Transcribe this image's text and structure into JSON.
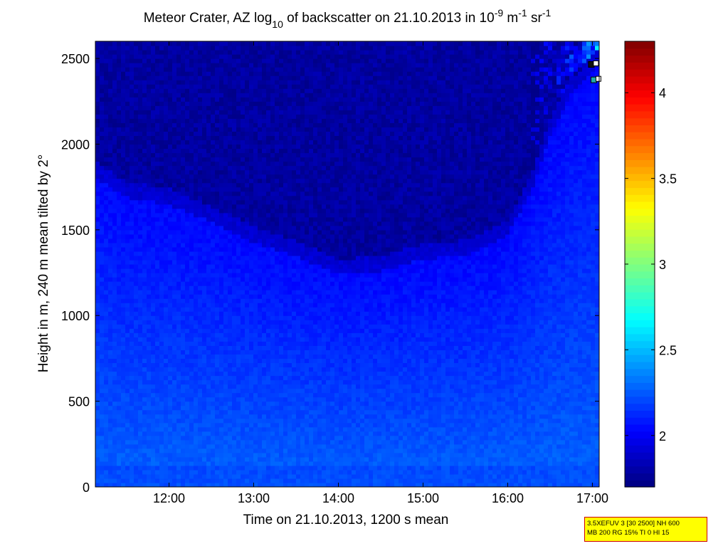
{
  "chart_data": {
    "type": "heatmap",
    "title": {
      "prefix": "Meteor Crater, AZ log",
      "prefix_sub": "10",
      "middle": " of backscatter on 21.10.2013 in 10",
      "exp1": "-9",
      "m_unit": " m",
      "exp2": "-1",
      "sr_unit": " sr",
      "exp3": "-1"
    },
    "xlabel": "Time on 21.10.2013, 1200 s mean",
    "ylabel": "Height in m, 240 m mean tilted by 2°",
    "x_range_hours": [
      11.13,
      17.08
    ],
    "y_range_m": [
      0,
      2600
    ],
    "x_ticks": [
      {
        "value": 12,
        "label": "12:00"
      },
      {
        "value": 13,
        "label": "13:00"
      },
      {
        "value": 14,
        "label": "14:00"
      },
      {
        "value": 15,
        "label": "15:00"
      },
      {
        "value": 16,
        "label": "16:00"
      },
      {
        "value": 17,
        "label": "17:00"
      }
    ],
    "y_ticks": [
      {
        "value": 0,
        "label": "0"
      },
      {
        "value": 500,
        "label": "500"
      },
      {
        "value": 1000,
        "label": "1000"
      },
      {
        "value": 1500,
        "label": "1500"
      },
      {
        "value": 2000,
        "label": "2000"
      },
      {
        "value": 2500,
        "label": "2500"
      }
    ],
    "colorbar": {
      "range": [
        1.7,
        4.3
      ],
      "colormap": "jet",
      "ticks": [
        {
          "value": 2,
          "label": "2"
        },
        {
          "value": 2.5,
          "label": "2.5"
        },
        {
          "value": 3,
          "label": "3"
        },
        {
          "value": 3.5,
          "label": "3.5"
        },
        {
          "value": 4,
          "label": "4"
        }
      ]
    },
    "low_backscatter_top_height_m": [
      {
        "time": 11.13,
        "height": 1900
      },
      {
        "time": 11.5,
        "height": 1780
      },
      {
        "time": 12.0,
        "height": 1740
      },
      {
        "time": 12.5,
        "height": 1640
      },
      {
        "time": 13.0,
        "height": 1520
      },
      {
        "time": 13.5,
        "height": 1440
      },
      {
        "time": 14.0,
        "height": 1330
      },
      {
        "time": 14.5,
        "height": 1350
      },
      {
        "time": 15.0,
        "height": 1420
      },
      {
        "time": 15.5,
        "height": 1440
      },
      {
        "time": 16.0,
        "height": 1560
      },
      {
        "time": 16.3,
        "height": 1850
      },
      {
        "time": 16.5,
        "height": 2150
      },
      {
        "time": 16.75,
        "height": 2380
      },
      {
        "time": 17.08,
        "height": 2560
      }
    ],
    "markers": [
      {
        "time": 17.02,
        "height": 2465,
        "color": "#111111"
      },
      {
        "time": 17.05,
        "height": 2375,
        "color": "#22aaaa"
      }
    ]
  },
  "info_box": {
    "line1": "3.5XEFUV 3 [30 2500] NH 600",
    "line2": "MB 200 RG 15% TI 0 HI 15"
  }
}
